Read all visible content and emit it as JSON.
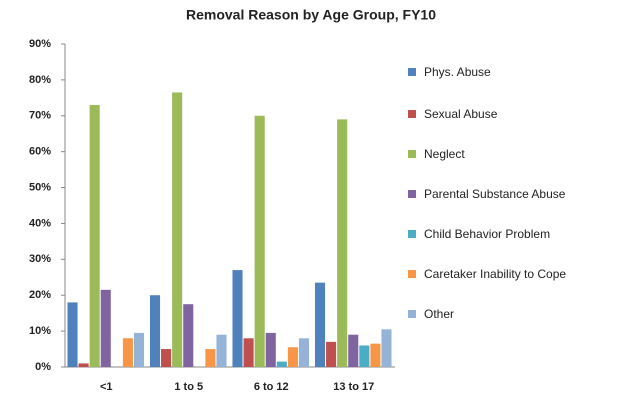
{
  "chart_data": {
    "type": "bar",
    "title": "Removal Reason by Age Group, FY10",
    "categories": [
      "<1",
      "1 to 5",
      "6 to 12",
      "13 to 17"
    ],
    "series": [
      {
        "name": "Phys. Abuse",
        "color": "#4f81bd",
        "values": [
          18,
          20,
          27,
          23.5
        ]
      },
      {
        "name": "Sexual Abuse",
        "color": "#c0504d",
        "values": [
          1,
          5,
          8,
          7
        ]
      },
      {
        "name": "Neglect",
        "color": "#9bbb59",
        "values": [
          73,
          76.5,
          70,
          69
        ]
      },
      {
        "name": "Parental Substance Abuse",
        "color": "#8064a2",
        "values": [
          21.5,
          17.5,
          9.5,
          9
        ]
      },
      {
        "name": "Child Behavior Problem",
        "color": "#4bacc6",
        "values": [
          0,
          0,
          1.5,
          6
        ]
      },
      {
        "name": "Caretaker Inability to Cope",
        "color": "#f79646",
        "values": [
          8,
          5,
          5.5,
          6.5
        ]
      },
      {
        "name": "Other",
        "color": "#95b3d7",
        "values": [
          9.5,
          9,
          8,
          10.5
        ]
      }
    ],
    "ylim": [
      0,
      90
    ],
    "yticks": [
      {
        "value": 0,
        "label": "0%"
      },
      {
        "value": 10,
        "label": "10%"
      },
      {
        "value": 20,
        "label": "20%"
      },
      {
        "value": 30,
        "label": "30%"
      },
      {
        "value": 40,
        "label": "40%"
      },
      {
        "value": 50,
        "label": "50%"
      },
      {
        "value": 60,
        "label": "60%"
      },
      {
        "value": 70,
        "label": "70%"
      },
      {
        "value": 80,
        "label": "80%"
      },
      {
        "value": 90,
        "label": "90%"
      }
    ],
    "grid": false,
    "legend": "right"
  }
}
